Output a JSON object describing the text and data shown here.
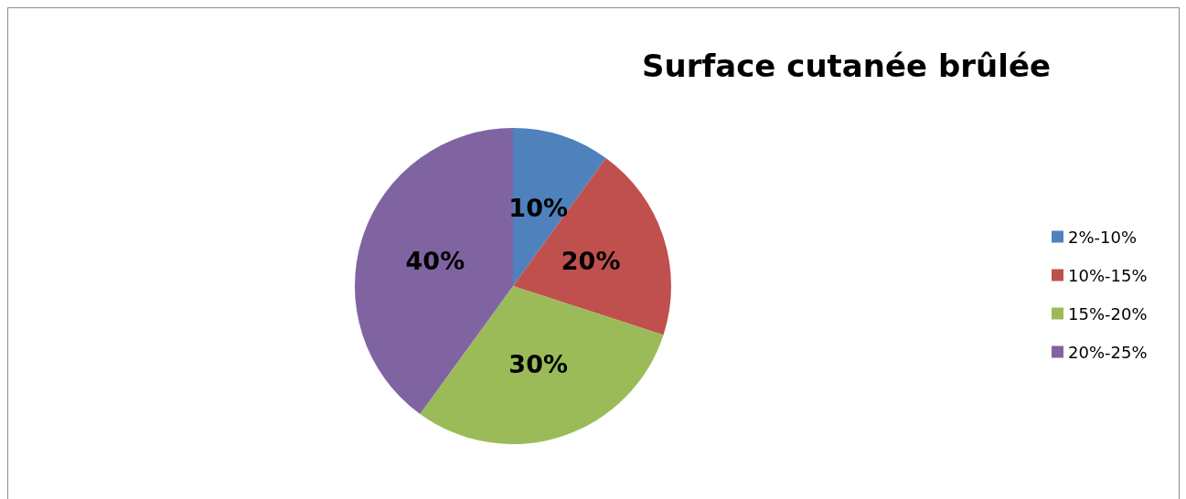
{
  "chart_data": {
    "type": "pie",
    "title": "Surface cutanée brûlée",
    "categories": [
      "2%-10%",
      "10%-15%",
      "15%-20%",
      "20%-25%"
    ],
    "values": [
      10,
      20,
      30,
      40
    ],
    "value_labels": [
      "10%",
      "20%",
      "30%",
      "40%"
    ],
    "colors": [
      "#4f81bd",
      "#c0504d",
      "#9bbb59",
      "#8064a2"
    ],
    "legend": "right"
  }
}
